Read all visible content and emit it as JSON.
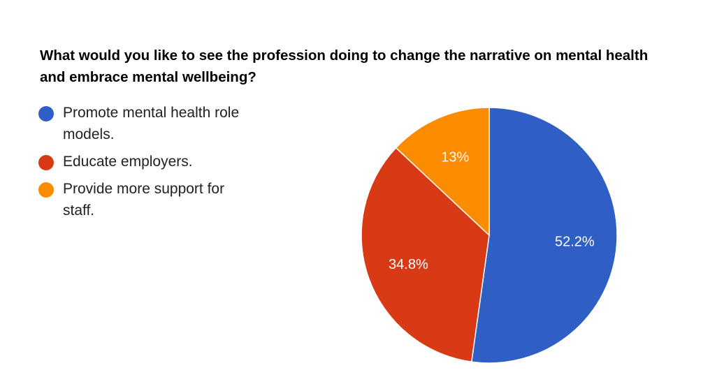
{
  "chart_data": {
    "type": "pie",
    "title": "What would you like to see the profession doing to change the narrative on mental health and embrace mental wellbeing?",
    "legend_position": "left",
    "slices": [
      {
        "label": "Promote mental health role models.",
        "value": 52.2,
        "display": "52.2%",
        "color": "#2f5ec4"
      },
      {
        "label": "Educate employers.",
        "value": 34.8,
        "display": "34.8%",
        "color": "#d93a16"
      },
      {
        "label": "Provide more support for staff.",
        "value": 13.0,
        "display": "13%",
        "color": "#fb8c00"
      }
    ]
  }
}
